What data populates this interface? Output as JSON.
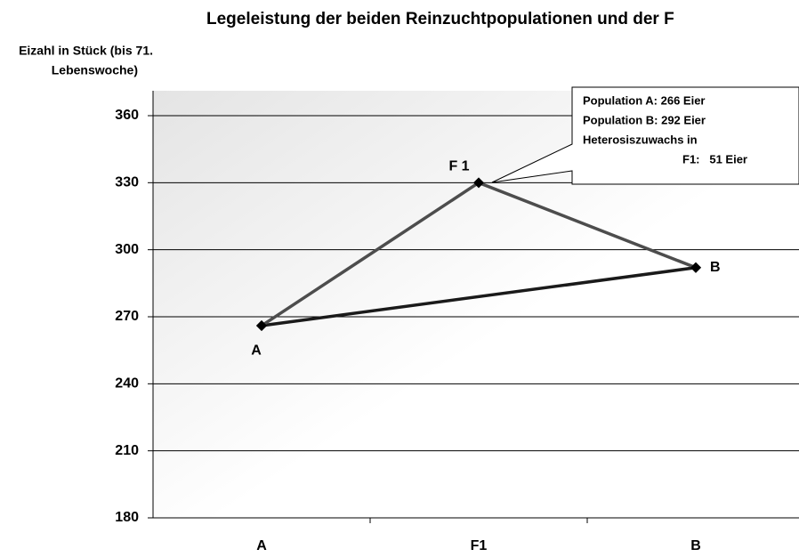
{
  "chart_data": {
    "type": "line",
    "title": "Legeleistung der beiden Reinzuchtpopulationen und der F",
    "y_label": [
      "Eizahl in Stück (bis 71.",
      "Lebenswoche)"
    ],
    "categories": [
      "A",
      "F1",
      "B"
    ],
    "series": [
      {
        "color": "#4d4d4d",
        "values": [
          266,
          330,
          292
        ],
        "point_labels": [
          "A",
          "F 1",
          "B"
        ]
      },
      {
        "color": "#1a1a1a",
        "values": [
          266,
          null,
          292
        ],
        "connect_gaps": true
      }
    ],
    "ylim": [
      180,
      360
    ],
    "yticks": [
      180,
      210,
      240,
      270,
      300,
      330,
      360
    ],
    "grid": true,
    "annotation": [
      "Population A: 266 Eier",
      "Population B: 292 Eier",
      "Heterosiszuwachs in",
      "F1:   51 Eier"
    ]
  }
}
